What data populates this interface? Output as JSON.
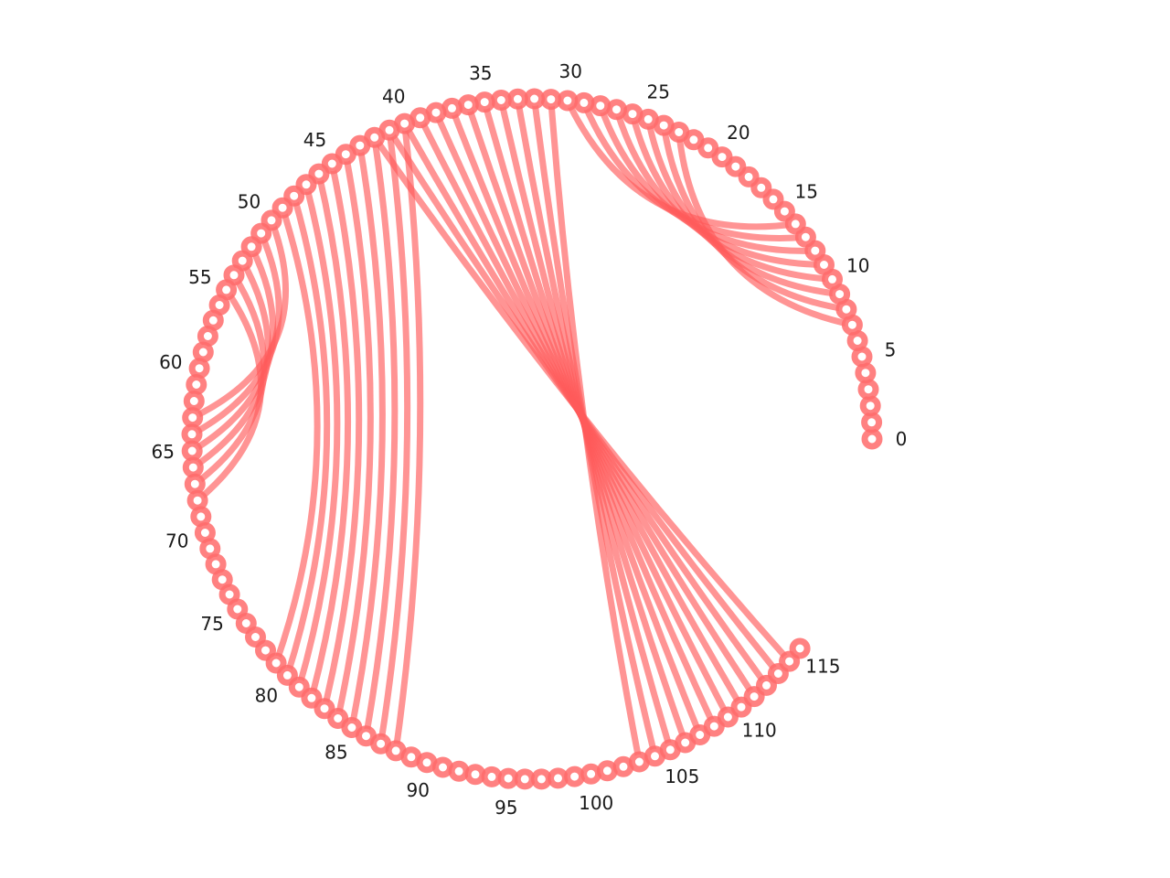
{
  "diagram": {
    "type": "arc-chord-diagram",
    "node_count": 116,
    "node_color": "#ff6b6b",
    "edge_color": "#ff5a5a",
    "node_labels": [
      "0",
      "5",
      "10",
      "15",
      "20",
      "25",
      "30",
      "35",
      "40",
      "45",
      "50",
      "55",
      "60",
      "65",
      "70",
      "75",
      "80",
      "85",
      "90",
      "95",
      "100",
      "105",
      "110",
      "115"
    ],
    "links": [
      [
        7,
        23
      ],
      [
        8,
        24
      ],
      [
        9,
        25
      ],
      [
        10,
        26
      ],
      [
        11,
        27
      ],
      [
        12,
        28
      ],
      [
        13,
        29
      ],
      [
        14,
        30
      ],
      [
        31,
        103
      ],
      [
        32,
        104
      ],
      [
        33,
        105
      ],
      [
        34,
        106
      ],
      [
        35,
        107
      ],
      [
        36,
        108
      ],
      [
        37,
        109
      ],
      [
        38,
        110
      ],
      [
        39,
        111
      ],
      [
        40,
        112
      ],
      [
        41,
        113
      ],
      [
        42,
        114
      ],
      [
        40,
        88
      ],
      [
        41,
        87
      ],
      [
        42,
        86
      ],
      [
        43,
        85
      ],
      [
        44,
        84
      ],
      [
        45,
        83
      ],
      [
        46,
        82
      ],
      [
        47,
        81
      ],
      [
        48,
        80
      ],
      [
        49,
        79
      ],
      [
        50,
        63
      ],
      [
        51,
        64
      ],
      [
        52,
        65
      ],
      [
        53,
        66
      ],
      [
        54,
        67
      ],
      [
        55,
        68
      ]
    ]
  }
}
